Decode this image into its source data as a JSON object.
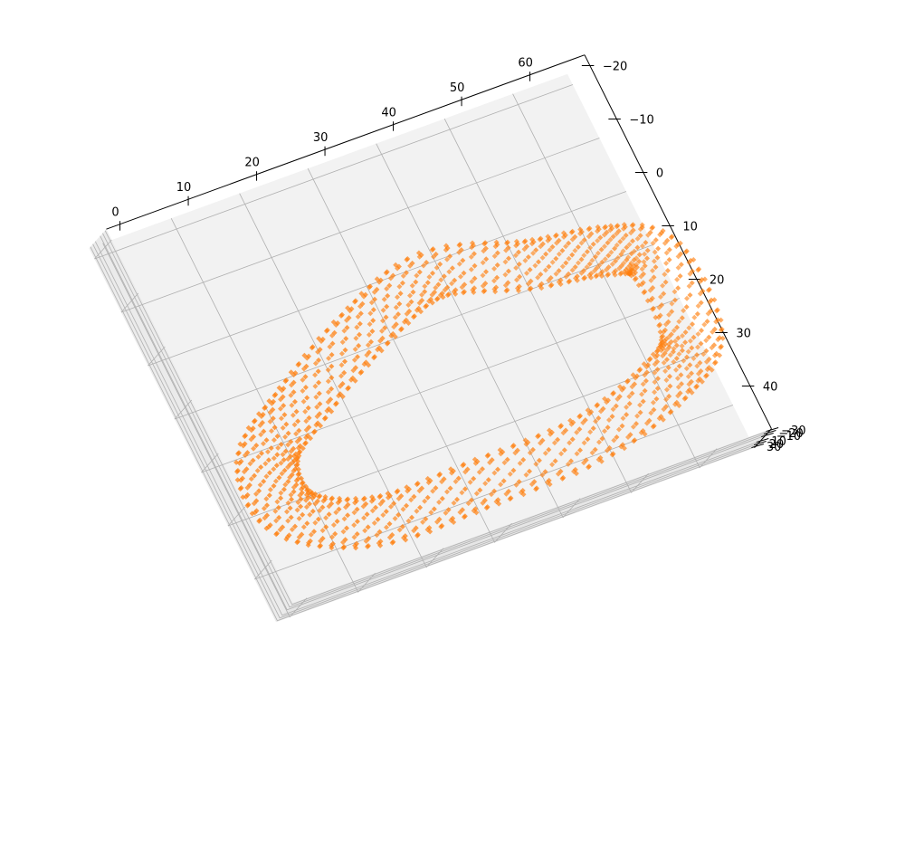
{
  "chart_data": {
    "type": "scatter",
    "projection": "3d",
    "title": "",
    "xlabel": "",
    "ylabel": "",
    "zlabel": "",
    "marker": "diamond",
    "grid": true,
    "colors": {
      "points": "#ff7f0e",
      "pane": "#f2f2f2",
      "grid": "#b0b0b0",
      "axis": "#000000"
    },
    "axes": {
      "x": {
        "range": [
          -2,
          68
        ],
        "ticks": [
          0,
          10,
          20,
          30,
          40,
          50,
          60
        ],
        "tick_labels": [
          "0",
          "10",
          "20",
          "30",
          "40",
          "50",
          "60"
        ]
      },
      "y": {
        "range": [
          -22,
          48
        ],
        "ticks": [
          -20,
          -10,
          0,
          10,
          20,
          30,
          40
        ],
        "tick_labels": [
          "−20",
          "−10",
          "0",
          "10",
          "20",
          "30",
          "40"
        ]
      },
      "z": {
        "range": [
          -35,
          35
        ],
        "ticks": [
          30,
          20,
          10,
          -10,
          -20,
          -30
        ],
        "tick_labels": [
          "30",
          "20",
          "10",
          "−10",
          "−20",
          "−30"
        ]
      }
    },
    "point_cloud": {
      "shape": "closed ring-shaped surface (tube swept around an elongated loop)",
      "path_vertices_xy": [
        [
          37,
          3
        ],
        [
          50,
          7
        ],
        [
          60,
          9
        ],
        [
          66,
          13
        ],
        [
          66,
          27
        ],
        [
          60,
          33
        ],
        [
          47,
          38
        ],
        [
          30,
          39
        ],
        [
          15,
          39
        ],
        [
          5,
          33
        ],
        [
          5,
          23
        ],
        [
          13,
          16
        ],
        [
          25,
          8
        ]
      ],
      "tube_radius": 4.2,
      "z_amplitude": 6,
      "samples_along_path": 120,
      "samples_around_tube": 12
    }
  }
}
